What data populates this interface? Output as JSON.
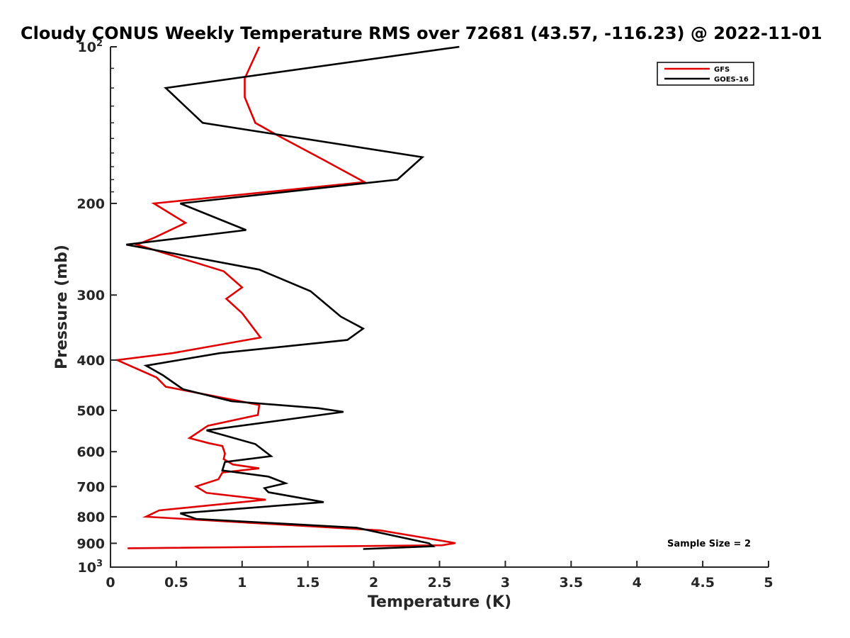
{
  "chart_data": {
    "type": "line",
    "title": "Cloudy CONUS Weekly Temperature RMS over 72681 (43.57, -116.23) @ 2022-11-01",
    "xlabel": "Temperature (K)",
    "ylabel": "Pressure (mb)",
    "xlim": [
      0,
      5
    ],
    "ylim": [
      100,
      1000
    ],
    "y_scale": "log",
    "y_reversed": true,
    "x_ticks": [
      "0",
      "0.5",
      "1",
      "1.5",
      "2",
      "2.5",
      "3",
      "3.5",
      "4",
      "4.5",
      "5"
    ],
    "y_ticks": [
      {
        "value": 100,
        "label": "10",
        "exp": "2"
      },
      {
        "value": 200,
        "label": "200"
      },
      {
        "value": 300,
        "label": "300"
      },
      {
        "value": 400,
        "label": "400"
      },
      {
        "value": 500,
        "label": "500"
      },
      {
        "value": 600,
        "label": "600"
      },
      {
        "value": 700,
        "label": "700"
      },
      {
        "value": 800,
        "label": "800"
      },
      {
        "value": 900,
        "label": "900"
      },
      {
        "value": 1000,
        "label": "10",
        "exp": "3"
      }
    ],
    "legend_position": "top-right",
    "grid": false,
    "series": [
      {
        "name": "GFS",
        "color": "#e00000",
        "points": [
          [
            1.13,
            100
          ],
          [
            1.02,
            115
          ],
          [
            1.02,
            125
          ],
          [
            1.1,
            140
          ],
          [
            1.27,
            148
          ],
          [
            1.62,
            165
          ],
          [
            1.93,
            182
          ],
          [
            0.33,
            200
          ],
          [
            0.57,
            218
          ],
          [
            0.33,
            233
          ],
          [
            0.2,
            240
          ],
          [
            0.86,
            270
          ],
          [
            1.0,
            290
          ],
          [
            0.88,
            305
          ],
          [
            1.0,
            325
          ],
          [
            1.14,
            362
          ],
          [
            0.47,
            388
          ],
          [
            0.05,
            400
          ],
          [
            0.35,
            432
          ],
          [
            0.42,
            450
          ],
          [
            0.95,
            478
          ],
          [
            1.13,
            488
          ],
          [
            1.12,
            510
          ],
          [
            0.74,
            535
          ],
          [
            0.6,
            565
          ],
          [
            0.75,
            578
          ],
          [
            0.85,
            585
          ],
          [
            0.87,
            605
          ],
          [
            0.86,
            620
          ],
          [
            0.93,
            635
          ],
          [
            1.13,
            646
          ],
          [
            0.85,
            658
          ],
          [
            0.82,
            678
          ],
          [
            0.65,
            700
          ],
          [
            0.73,
            720
          ],
          [
            1.18,
            742
          ],
          [
            0.37,
            778
          ],
          [
            0.27,
            800
          ],
          [
            2.05,
            850
          ],
          [
            2.38,
            878
          ],
          [
            2.62,
            899
          ],
          [
            2.52,
            908
          ],
          [
            0.13,
            920
          ]
        ]
      },
      {
        "name": "GOES-16",
        "color": "#000000",
        "points": [
          [
            2.65,
            100
          ],
          [
            0.42,
            120
          ],
          [
            0.7,
            140
          ],
          [
            2.37,
            163
          ],
          [
            2.18,
            180
          ],
          [
            0.53,
            200
          ],
          [
            1.03,
            225
          ],
          [
            0.12,
            240
          ],
          [
            1.13,
            268
          ],
          [
            1.52,
            295
          ],
          [
            1.75,
            330
          ],
          [
            1.92,
            348
          ],
          [
            1.8,
            366
          ],
          [
            0.83,
            388
          ],
          [
            0.27,
            410
          ],
          [
            0.4,
            428
          ],
          [
            0.55,
            455
          ],
          [
            0.92,
            480
          ],
          [
            1.58,
            495
          ],
          [
            1.77,
            503
          ],
          [
            0.73,
            546
          ],
          [
            1.1,
            580
          ],
          [
            1.22,
            612
          ],
          [
            0.87,
            628
          ],
          [
            0.85,
            652
          ],
          [
            1.2,
            670
          ],
          [
            1.33,
            690
          ],
          [
            1.17,
            705
          ],
          [
            1.2,
            718
          ],
          [
            1.62,
            750
          ],
          [
            0.53,
            788
          ],
          [
            0.65,
            808
          ],
          [
            1.87,
            840
          ],
          [
            2.42,
            900
          ],
          [
            2.45,
            912
          ],
          [
            1.92,
            923
          ]
        ]
      }
    ],
    "annotation": "Sample Size = 2"
  }
}
